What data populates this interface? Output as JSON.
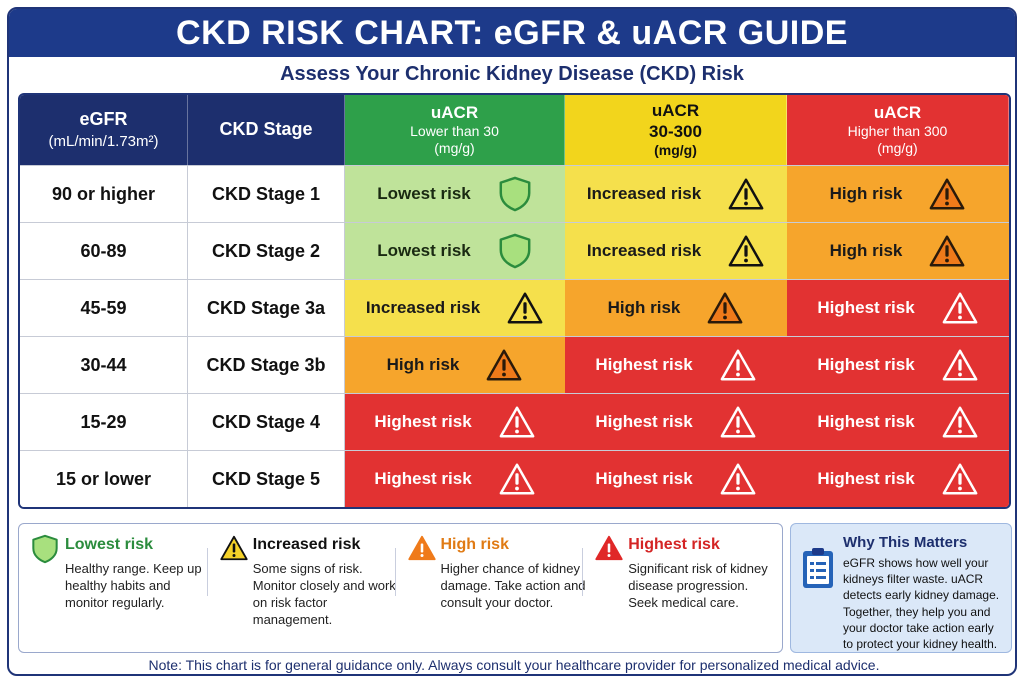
{
  "header": {
    "title": "CKD RISK CHART: eGFR & uACR GUIDE",
    "subtitle": "Assess Your Chronic Kidney Disease (CKD) Risk"
  },
  "table": {
    "col_egfr": {
      "label": "eGFR",
      "unit": "(mL/min/1.73m²)"
    },
    "col_stage": {
      "label": "CKD Stage"
    },
    "uacr_columns": [
      {
        "line1": "uACR",
        "line2": "Lower than 30",
        "line3": "(mg/g)"
      },
      {
        "line1": "uACR",
        "line2": "30-300",
        "line3": "(mg/g)"
      },
      {
        "line1": "uACR",
        "line2": "Higher than 300",
        "line3": "(mg/g)"
      }
    ],
    "rows": [
      {
        "egfr": "90 or higher",
        "stage": "CKD Stage 1",
        "cells": [
          {
            "text": "Lowest risk",
            "level": "lowest"
          },
          {
            "text": "Increased risk",
            "level": "increased"
          },
          {
            "text": "High risk",
            "level": "high"
          }
        ]
      },
      {
        "egfr": "60-89",
        "stage": "CKD Stage 2",
        "cells": [
          {
            "text": "Lowest risk",
            "level": "lowest"
          },
          {
            "text": "Increased risk",
            "level": "increased"
          },
          {
            "text": "High risk",
            "level": "high"
          }
        ]
      },
      {
        "egfr": "45-59",
        "stage": "CKD Stage 3a",
        "cells": [
          {
            "text": "Increased risk",
            "level": "increased"
          },
          {
            "text": "High risk",
            "level": "high"
          },
          {
            "text": "Highest risk",
            "level": "highest"
          }
        ]
      },
      {
        "egfr": "30-44",
        "stage": "CKD Stage 3b",
        "cells": [
          {
            "text": "High risk",
            "level": "high"
          },
          {
            "text": "Highest risk",
            "level": "highest"
          },
          {
            "text": "Highest risk",
            "level": "highest"
          }
        ]
      },
      {
        "egfr": "15-29",
        "stage": "CKD Stage 4",
        "cells": [
          {
            "text": "Highest risk",
            "level": "highest"
          },
          {
            "text": "Highest risk",
            "level": "highest"
          },
          {
            "text": "Highest risk",
            "level": "highest"
          }
        ]
      },
      {
        "egfr": "15 or lower",
        "stage": "CKD Stage 5",
        "cells": [
          {
            "text": "Highest risk",
            "level": "highest"
          },
          {
            "text": "Highest risk",
            "level": "highest"
          },
          {
            "text": "Highest risk",
            "level": "highest"
          }
        ]
      }
    ]
  },
  "legend": [
    {
      "title": "Lowest risk",
      "level": "lowest",
      "icon": "shield-icon",
      "desc": "Healthy range. Keep up healthy habits and monitor regularly."
    },
    {
      "title": "Increased risk",
      "level": "increased",
      "icon": "warning-triangle-icon",
      "desc": "Some signs of risk. Monitor closely and work on risk factor management."
    },
    {
      "title": "High risk",
      "level": "high",
      "icon": "warning-triangle-icon",
      "desc": "Higher chance of kidney damage. Take action and consult your doctor."
    },
    {
      "title": "Highest risk",
      "level": "highest",
      "icon": "warning-triangle-icon",
      "desc": "Significant risk of kidney disease progression. Seek medical care."
    }
  ],
  "why": {
    "title": "Why This Matters",
    "icon": "clipboard-icon",
    "text": "eGFR shows how well your kidneys filter waste. uACR detects early kidney damage. Together, they help you and your doctor take action early to protect your kidney health."
  },
  "note": "Note: This chart is for general guidance only. Always consult your healthcare provider for personalized medical advice.",
  "colors": {
    "navy": "#1d2f6e",
    "title_blue": "#1d3a8a",
    "lowest": "#bfe39a",
    "increased": "#f5e04c",
    "high": "#f6a52c",
    "highest": "#e23232",
    "header_green": "#2ea04a",
    "header_yellow": "#f2d51c",
    "header_red": "#e23232"
  }
}
